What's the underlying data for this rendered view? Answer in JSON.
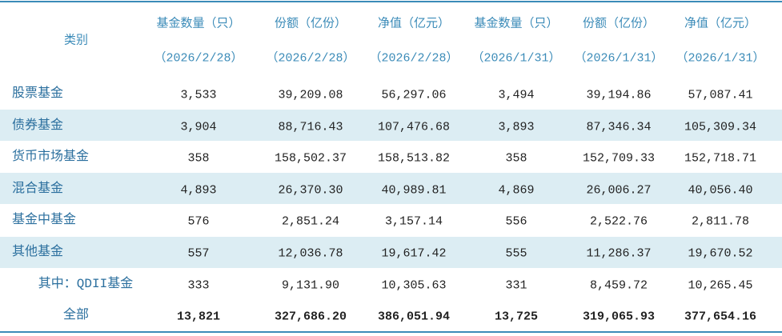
{
  "header": {
    "category": "类别",
    "columns": [
      {
        "label": "基金数量（只）",
        "date": "（2026/2/28）"
      },
      {
        "label": "份额（亿份）",
        "date": "（2026/2/28）"
      },
      {
        "label": "净值（亿元）",
        "date": "（2026/2/28）"
      },
      {
        "label": "基金数量（只）",
        "date": "（2026/1/31）"
      },
      {
        "label": "份额（亿份）",
        "date": "（2026/1/31）"
      },
      {
        "label": "净值（亿元）",
        "date": "（2026/1/31）"
      }
    ]
  },
  "rows": [
    {
      "name": "股票基金",
      "values": [
        "3,533",
        "39,209.08",
        "56,297.06",
        "3,494",
        "39,194.86",
        "57,087.41"
      ]
    },
    {
      "name": "债券基金",
      "values": [
        "3,904",
        "88,716.43",
        "107,476.68",
        "3,893",
        "87,346.34",
        "105,309.34"
      ]
    },
    {
      "name": "货币市场基金",
      "values": [
        "358",
        "158,502.37",
        "158,513.82",
        "358",
        "152,709.33",
        "152,718.71"
      ]
    },
    {
      "name": "混合基金",
      "values": [
        "4,893",
        "26,370.30",
        "40,989.81",
        "4,869",
        "26,006.27",
        "40,056.40"
      ]
    },
    {
      "name": "基金中基金",
      "values": [
        "576",
        "2,851.24",
        "3,157.14",
        "556",
        "2,522.76",
        "2,811.78"
      ]
    },
    {
      "name": "其他基金",
      "values": [
        "557",
        "12,036.78",
        "19,617.42",
        "555",
        "11,286.37",
        "19,670.52"
      ]
    },
    {
      "name": "其中：QDII基金",
      "values": [
        "333",
        "9,131.90",
        "10,305.63",
        "331",
        "8,459.72",
        "10,265.45"
      ]
    },
    {
      "name": "全部",
      "values": [
        "13,821",
        "327,686.20",
        "386,051.94",
        "13,725",
        "319,065.93",
        "377,654.16"
      ]
    }
  ]
}
